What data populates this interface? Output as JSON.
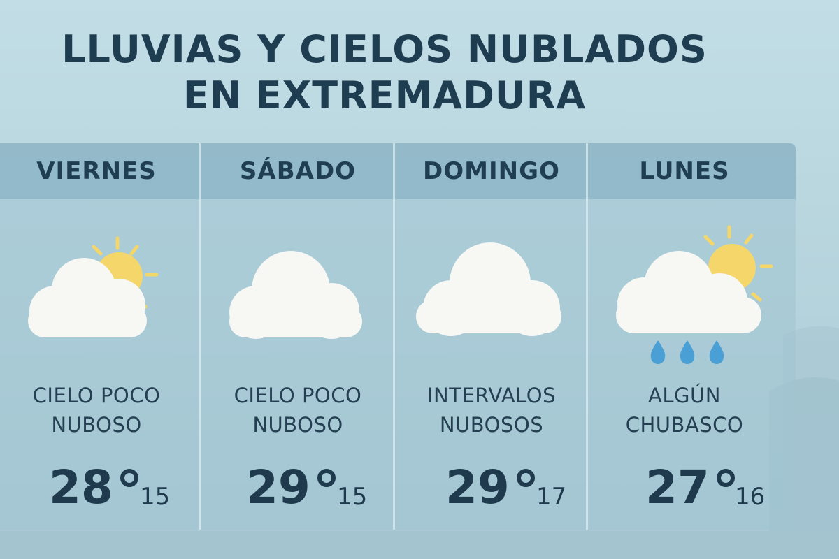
{
  "title": {
    "line1": "LLUVIAS Y CIELOS NUBLADOS",
    "line2": "EN EXTREMADURA"
  },
  "days": [
    {
      "day": "VIERNES",
      "icon": "sun-behind-cloud-icon",
      "desc1": "CIELO POCO",
      "desc2": "NUBOSO",
      "max": "28",
      "min": "15"
    },
    {
      "day": "SÁBADO",
      "icon": "cloud-icon",
      "desc1": "CIELO POCO",
      "desc2": "NUBOSO",
      "max": "29",
      "min": "15"
    },
    {
      "day": "DOMINGO",
      "icon": "cloud-icon",
      "desc1": "INTERVALOS",
      "desc2": "NUBOSOS",
      "max": "29",
      "min": "17"
    },
    {
      "day": "LUNES",
      "icon": "sun-cloud-rain-icon",
      "desc1": "ALGÚN",
      "desc2": "CHUBASCO",
      "max": "27",
      "min": "16"
    }
  ],
  "colors": {
    "sun": "#f5d66a",
    "cloud": "#f7f7f4",
    "rain": "#4a9fd4",
    "text": "#1f3d50"
  }
}
